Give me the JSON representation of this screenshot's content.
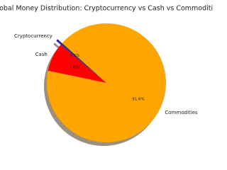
{
  "chart_data": {
    "type": "pie",
    "title": "Global Money Distribution: Cryptocurrency vs Cash vs Commodities",
    "categories": [
      "Cryptocurrency",
      "Cash",
      "Commodities"
    ],
    "values": [
      0.6,
      7.8,
      91.6
    ],
    "value_labels": [
      "0.6%",
      "7.8%",
      "91.6%"
    ],
    "colors": [
      "#2b2b9e",
      "#ff0000",
      "#ffa500"
    ]
  }
}
